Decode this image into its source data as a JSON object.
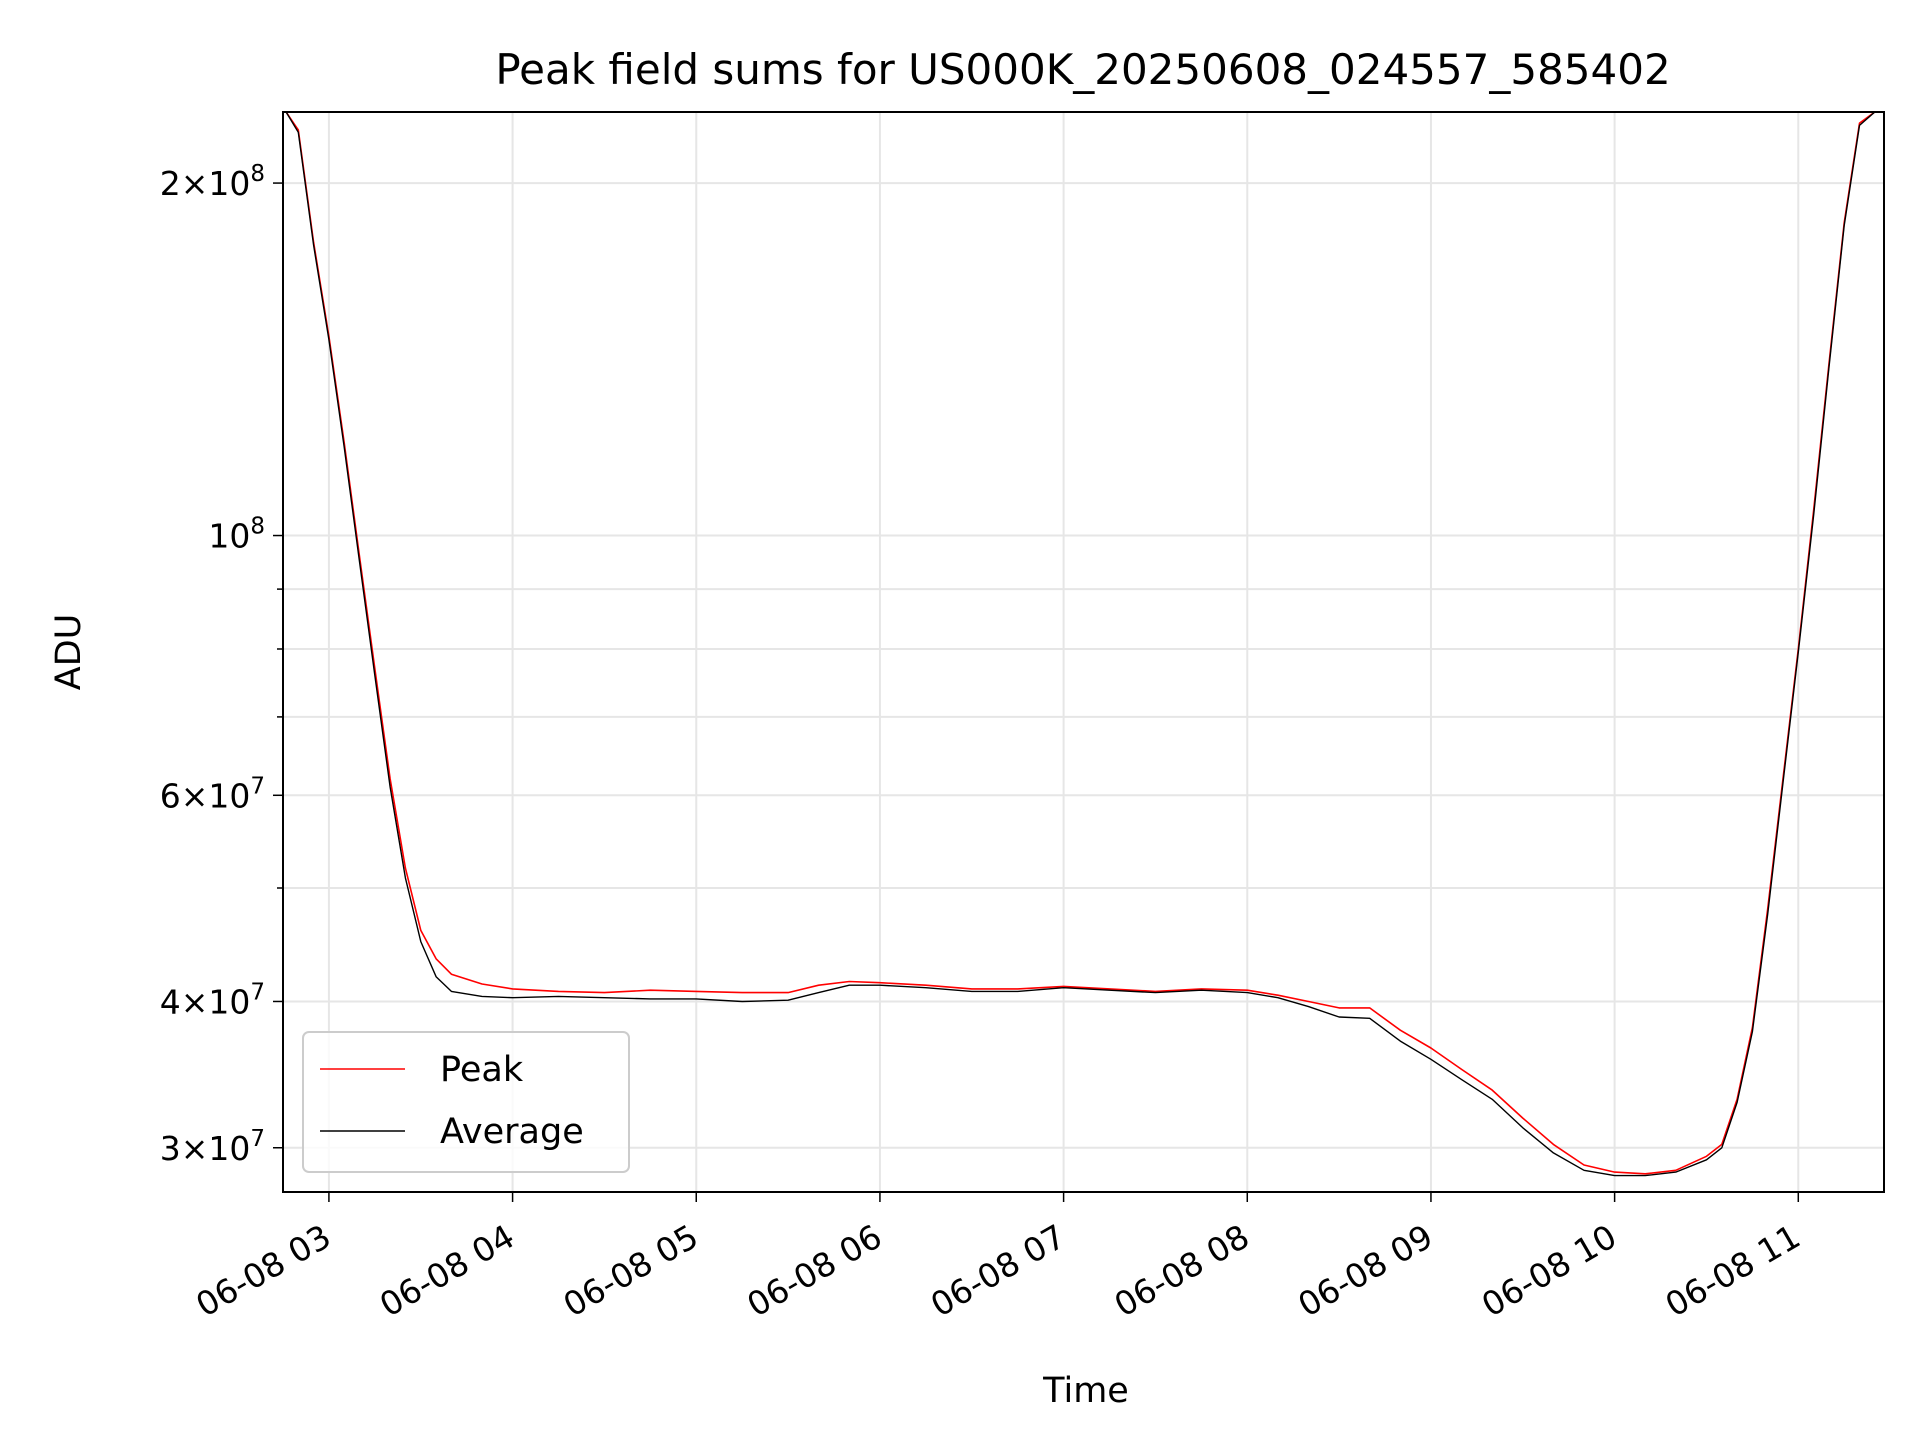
{
  "chart_data": {
    "type": "line",
    "title": "Peak field sums for US000K_20250608_024557_585402",
    "xlabel": "Time",
    "ylabel": "ADU",
    "yscale": "log",
    "grid": true,
    "legend_position": "lower-left",
    "xlim": [
      "06-08 02:45",
      "06-08 11:28"
    ],
    "ylim": [
      27500000,
      230000000
    ],
    "x_ticks": [
      {
        "t": "06-08 03:00",
        "label": "06-08 03"
      },
      {
        "t": "06-08 04:00",
        "label": "06-08 04"
      },
      {
        "t": "06-08 05:00",
        "label": "06-08 05"
      },
      {
        "t": "06-08 06:00",
        "label": "06-08 06"
      },
      {
        "t": "06-08 07:00",
        "label": "06-08 07"
      },
      {
        "t": "06-08 08:00",
        "label": "06-08 08"
      },
      {
        "t": "06-08 09:00",
        "label": "06-08 09"
      },
      {
        "t": "06-08 10:00",
        "label": "06-08 10"
      },
      {
        "t": "06-08 11:00",
        "label": "06-08 11"
      }
    ],
    "y_ticks": [
      {
        "value": 30000000,
        "mant": "3",
        "exp": "7"
      },
      {
        "value": 40000000,
        "mant": "4",
        "exp": "7"
      },
      {
        "value": 60000000,
        "mant": "6",
        "exp": "7"
      },
      {
        "value": 100000000,
        "mant": "",
        "exp": "8"
      },
      {
        "value": 200000000,
        "mant": "2",
        "exp": "8"
      }
    ],
    "y_minor_ticks": [
      50000000,
      70000000,
      80000000,
      90000000
    ],
    "series": [
      {
        "name": "Peak",
        "color": "#ff0000",
        "x": [
          "06-08 02:46",
          "06-08 02:50",
          "06-08 02:55",
          "06-08 03:00",
          "06-08 03:05",
          "06-08 03:10",
          "06-08 03:15",
          "06-08 03:20",
          "06-08 03:25",
          "06-08 03:30",
          "06-08 03:35",
          "06-08 03:40",
          "06-08 03:50",
          "06-08 04:00",
          "06-08 04:15",
          "06-08 04:30",
          "06-08 04:45",
          "06-08 05:00",
          "06-08 05:15",
          "06-08 05:30",
          "06-08 05:40",
          "06-08 05:50",
          "06-08 06:00",
          "06-08 06:15",
          "06-08 06:30",
          "06-08 06:45",
          "06-08 07:00",
          "06-08 07:15",
          "06-08 07:30",
          "06-08 07:45",
          "06-08 08:00",
          "06-08 08:10",
          "06-08 08:20",
          "06-08 08:30",
          "06-08 08:40",
          "06-08 08:50",
          "06-08 09:00",
          "06-08 09:10",
          "06-08 09:20",
          "06-08 09:30",
          "06-08 09:40",
          "06-08 09:50",
          "06-08 10:00",
          "06-08 10:10",
          "06-08 10:20",
          "06-08 10:30",
          "06-08 10:35",
          "06-08 10:40",
          "06-08 10:45",
          "06-08 10:50",
          "06-08 10:55",
          "06-08 11:00",
          "06-08 11:05",
          "06-08 11:10",
          "06-08 11:15",
          "06-08 11:20",
          "06-08 11:25"
        ],
        "y": [
          230000000,
          222000000,
          178000000,
          148000000,
          120000000,
          96000000,
          77000000,
          62000000,
          52000000,
          46000000,
          43500000,
          42200000,
          41400000,
          41000000,
          40800000,
          40700000,
          40900000,
          40800000,
          40700000,
          40700000,
          41300000,
          41600000,
          41500000,
          41300000,
          41000000,
          41000000,
          41200000,
          41000000,
          40800000,
          41000000,
          40900000,
          40500000,
          40000000,
          39500000,
          39500000,
          37800000,
          36500000,
          35000000,
          33600000,
          31800000,
          30200000,
          29000000,
          28600000,
          28500000,
          28700000,
          29500000,
          30200000,
          33000000,
          38000000,
          48000000,
          62000000,
          80000000,
          105000000,
          140000000,
          185000000,
          225000000,
          230000000
        ]
      },
      {
        "name": "Average",
        "color": "#000000",
        "x": [
          "06-08 02:46",
          "06-08 02:50",
          "06-08 02:55",
          "06-08 03:00",
          "06-08 03:05",
          "06-08 03:10",
          "06-08 03:15",
          "06-08 03:20",
          "06-08 03:25",
          "06-08 03:30",
          "06-08 03:35",
          "06-08 03:40",
          "06-08 03:50",
          "06-08 04:00",
          "06-08 04:15",
          "06-08 04:30",
          "06-08 04:45",
          "06-08 05:00",
          "06-08 05:15",
          "06-08 05:30",
          "06-08 05:40",
          "06-08 05:50",
          "06-08 06:00",
          "06-08 06:15",
          "06-08 06:30",
          "06-08 06:45",
          "06-08 07:00",
          "06-08 07:15",
          "06-08 07:30",
          "06-08 07:45",
          "06-08 08:00",
          "06-08 08:10",
          "06-08 08:20",
          "06-08 08:30",
          "06-08 08:40",
          "06-08 08:50",
          "06-08 09:00",
          "06-08 09:10",
          "06-08 09:20",
          "06-08 09:30",
          "06-08 09:40",
          "06-08 09:50",
          "06-08 10:00",
          "06-08 10:10",
          "06-08 10:20",
          "06-08 10:30",
          "06-08 10:35",
          "06-08 10:40",
          "06-08 10:45",
          "06-08 10:50",
          "06-08 10:55",
          "06-08 11:00",
          "06-08 11:05",
          "06-08 11:10",
          "06-08 11:15",
          "06-08 11:20",
          "06-08 11:25"
        ],
        "y": [
          230000000,
          221000000,
          177000000,
          147000000,
          119000000,
          95000000,
          76000000,
          61000000,
          51000000,
          45000000,
          42000000,
          40800000,
          40400000,
          40300000,
          40400000,
          40300000,
          40200000,
          40200000,
          40000000,
          40100000,
          40700000,
          41300000,
          41300000,
          41100000,
          40800000,
          40800000,
          41100000,
          40900000,
          40700000,
          40900000,
          40700000,
          40300000,
          39600000,
          38800000,
          38700000,
          37000000,
          35700000,
          34300000,
          33000000,
          31200000,
          29700000,
          28700000,
          28400000,
          28400000,
          28600000,
          29300000,
          30000000,
          32800000,
          37700000,
          47500000,
          61500000,
          79500000,
          104000000,
          139000000,
          184000000,
          224000000,
          230000000
        ]
      }
    ]
  }
}
